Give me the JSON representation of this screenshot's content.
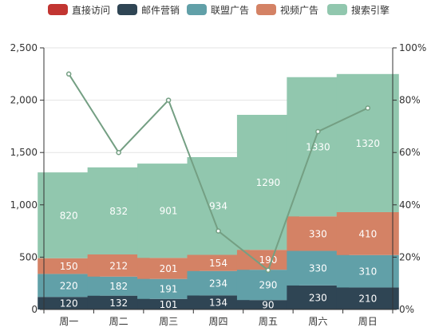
{
  "chart_data": {
    "type": "bar",
    "stacked": true,
    "categories": [
      "周一",
      "周二",
      "周三",
      "周四",
      "周五",
      "周六",
      "周日"
    ],
    "series": [
      {
        "name": "直接访问",
        "values": [
          0,
          0,
          0,
          0,
          0,
          0,
          0
        ],
        "color": "#c23531"
      },
      {
        "name": "邮件营销",
        "values": [
          120,
          132,
          101,
          134,
          90,
          230,
          210
        ],
        "color": "#2f4554"
      },
      {
        "name": "联盟广告",
        "values": [
          220,
          182,
          191,
          234,
          290,
          330,
          310
        ],
        "color": "#61a0a8"
      },
      {
        "name": "视频广告",
        "values": [
          150,
          212,
          201,
          154,
          190,
          330,
          410
        ],
        "color": "#d48265"
      },
      {
        "name": "搜索引擎",
        "values": [
          820,
          832,
          901,
          934,
          1290,
          1330,
          1320
        ],
        "color": "#91c7ae"
      }
    ],
    "line": {
      "values_percent": [
        90,
        60,
        80,
        30,
        15,
        68,
        77
      ],
      "color": "#749f83"
    },
    "y_left": {
      "min": 0,
      "max": 2500,
      "ticks": [
        "0",
        "500",
        "1,000",
        "1,500",
        "2,000",
        "2,500"
      ]
    },
    "y_right": {
      "min": 0,
      "max": 100,
      "ticks": [
        "0%",
        "20%",
        "40%",
        "60%",
        "80%",
        "100%"
      ]
    },
    "grid": true,
    "legend_position": "top"
  }
}
